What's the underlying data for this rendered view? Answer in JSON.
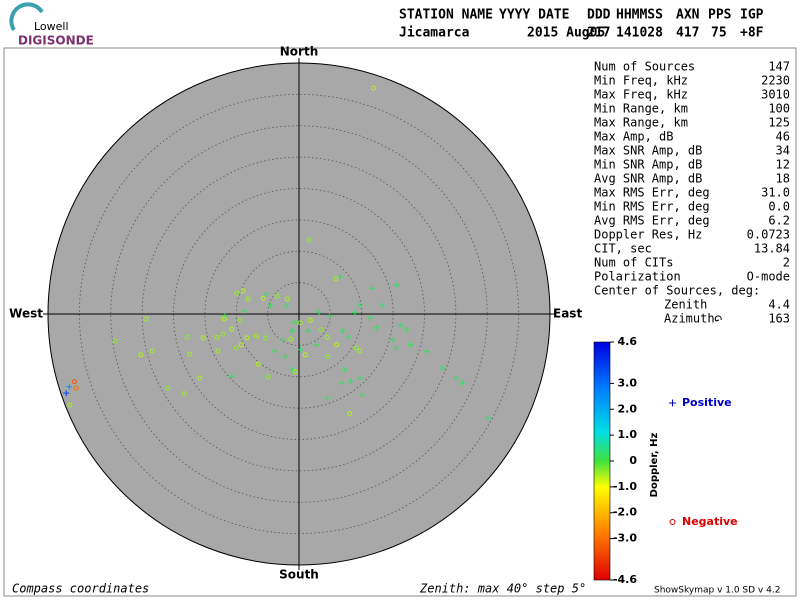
{
  "header": {
    "logo_top": "Lowell",
    "logo_bottom": "DIGISONDE",
    "columns": [
      "STATION NAME",
      "YYYY DATE",
      "DDD",
      "HHMMSS",
      "AXN",
      "PPS",
      "IGP"
    ],
    "values": [
      "Jicamarca",
      "2015 Aug05",
      "217",
      "141028",
      "417",
      "75",
      "+8F"
    ]
  },
  "stats": [
    {
      "label": "Num of Sources",
      "value": "147"
    },
    {
      "label": "Min Freq, kHz",
      "value": "2230"
    },
    {
      "label": "Max Freq, kHz",
      "value": "3010"
    },
    {
      "label": "Min Range, km",
      "value": "100"
    },
    {
      "label": "Max Range, km",
      "value": "125"
    },
    {
      "label": "Max Amp, dB",
      "value": "46"
    },
    {
      "label": "Max SNR Amp, dB",
      "value": "34"
    },
    {
      "label": "Min SNR Amp, dB",
      "value": "12"
    },
    {
      "label": "Avg SNR Amp, dB",
      "value": "18"
    },
    {
      "label": "Max RMS Err, deg",
      "value": "31.0"
    },
    {
      "label": "Min RMS Err, deg",
      "value": "0.0"
    },
    {
      "label": "Avg RMS Err, deg",
      "value": "6.2"
    },
    {
      "label": "Doppler Res, Hz",
      "value": "0.0723"
    },
    {
      "label": "CIT, sec",
      "value": "13.84"
    },
    {
      "label": "Num of CITs",
      "value": "2"
    },
    {
      "label": "Polarization",
      "value": "O-mode"
    }
  ],
  "center": {
    "title": "Center of Sources, deg:",
    "rows": [
      {
        "label": "Zenith",
        "value": "4.4"
      },
      {
        "label": "Azimuth",
        "value": "163"
      }
    ]
  },
  "footer": {
    "left": "Compass coordinates",
    "middle": "Zenith: max 40°  step 5°",
    "right": "ShowSkymap v 1.0  SD v 4.2"
  },
  "chart_data": {
    "type": "skymap",
    "directions": {
      "north": "North",
      "south": "South",
      "east": "East",
      "west": "West"
    },
    "rlim": [
      0,
      40
    ],
    "rticks": [
      5,
      10,
      15,
      20,
      25,
      30,
      35,
      40
    ],
    "series": [
      {
        "name": "Positive",
        "marker": "+",
        "color": "#0000cc",
        "x": [
          6.5,
          15.6,
          11.6,
          9.7,
          13.2,
          3.2,
          4.9,
          8.9,
          11.3,
          12.3,
          16.1,
          17.2,
          15.0,
          15.4,
          17.8,
          20.4,
          7.0,
          7.8,
          7.3,
          8.3,
          9.7,
          4.5,
          6.8,
          10.0,
          22.8,
          25.0,
          26.1,
          30.1,
          -1.1,
          -2.5,
          0.2,
          -3.8,
          -2.2,
          -1.0,
          -10.7,
          -11.8,
          -8.8,
          -5.3,
          -4.5,
          -2.1,
          -0.8,
          1.4,
          2.7,
          -37.1,
          -36.6
        ],
        "y": [
          5.9,
          4.6,
          4.1,
          1.4,
          1.4,
          0.3,
          -0.3,
          0.2,
          -0.6,
          -2.2,
          -1.8,
          -2.5,
          -4.1,
          -5.4,
          -4.9,
          -6.0,
          -2.7,
          -3.7,
          -8.9,
          -10.7,
          -10.2,
          -13.4,
          -11.0,
          -12.9,
          -8.6,
          -10.2,
          -11.0,
          -16.6,
          -2.7,
          -4.1,
          -5.7,
          -5.9,
          -6.8,
          -8.9,
          -9.9,
          -0.3,
          0.5,
          3.2,
          1.4,
          1.3,
          -1.3,
          -2.7,
          -4.9,
          -12.6,
          -11.6
        ],
        "doppler": [
          0.2,
          0.3,
          0.2,
          0.2,
          0.3,
          0.2,
          0.2,
          0.3,
          0.2,
          0.2,
          0.3,
          0.2,
          0.2,
          0.3,
          0.2,
          0.2,
          0.2,
          0.3,
          0.2,
          0.2,
          0.3,
          0.2,
          0.2,
          0.2,
          0.3,
          0.2,
          0.2,
          0.3,
          0.2,
          0.2,
          0.3,
          0.2,
          0.2,
          0.2,
          0.3,
          0.2,
          0.2,
          0.3,
          0.2,
          0.2,
          0.2,
          0.3,
          0.2,
          3.6,
          2.4
        ]
      },
      {
        "name": "Negative",
        "marker": "o",
        "color": "#dd0000",
        "x": [
          11.9,
          1.6,
          5.9,
          -8.9,
          -9.9,
          -8.1,
          -5.7,
          -3.5,
          -1.9,
          -11.9,
          -9.4,
          -24.4,
          -10.7,
          -12.1,
          -13.1,
          -15.3,
          -17.8,
          -6.8,
          -9.2,
          -10.0,
          -12.9,
          -8.3,
          -5.3,
          -23.4,
          -25.2,
          -29.3,
          -17.4,
          -15.8,
          -20.9,
          -18.3,
          -6.5,
          -4.9,
          -0.6,
          8.1,
          3.5,
          4.5,
          6.0,
          9.1,
          9.7,
          1.0,
          4.6,
          -36.5,
          1.8,
          0.2,
          -1.3,
          -35.8,
          -35.5
        ],
        "y": [
          36.0,
          11.8,
          5.6,
          3.7,
          3.3,
          2.4,
          2.5,
          2.9,
          2.4,
          -0.8,
          -1.0,
          -0.8,
          -2.4,
          -3.2,
          -3.7,
          -3.8,
          -3.7,
          -3.5,
          -4.9,
          -5.4,
          -5.9,
          -3.8,
          -3.8,
          -5.9,
          -6.5,
          -4.3,
          -6.4,
          -10.2,
          -11.8,
          -12.7,
          -8.0,
          -10.0,
          -9.2,
          -15.9,
          -2.5,
          -3.7,
          -4.9,
          -5.4,
          -5.9,
          -6.5,
          -6.8,
          -14.5,
          -1.0,
          -1.4,
          -4.0,
          -10.8,
          -11.8
        ],
        "doppler": [
          -0.6,
          -0.4,
          -0.5,
          -0.6,
          -0.4,
          -0.5,
          -0.6,
          -0.4,
          -0.5,
          -0.6,
          -0.4,
          -0.5,
          -0.6,
          -0.4,
          -0.5,
          -0.6,
          -0.4,
          -0.5,
          -0.6,
          -0.4,
          -0.5,
          -0.6,
          -0.4,
          -0.5,
          -0.6,
          -0.4,
          -0.5,
          -0.6,
          -0.4,
          -0.5,
          -0.6,
          -0.4,
          -0.5,
          -0.6,
          -0.4,
          -0.5,
          -0.6,
          -0.4,
          -0.5,
          -0.6,
          -0.4,
          -0.5,
          -0.6,
          -0.4,
          -0.5,
          -3.4,
          -3.0
        ]
      }
    ],
    "colorbar": {
      "label": "Doppler, Hz",
      "lim": [
        -4.6,
        4.6
      ],
      "ticks": [
        -4.6,
        {
          "value": -3,
          "label": "-3.0"
        },
        {
          "value": -2,
          "label": "-2.0"
        },
        {
          "value": -1,
          "label": "-1.0"
        },
        0,
        {
          "value": 1,
          "label": "1.0"
        },
        {
          "value": 2,
          "label": "2.0"
        },
        {
          "value": 3,
          "label": "3.0"
        },
        4.6
      ]
    }
  }
}
